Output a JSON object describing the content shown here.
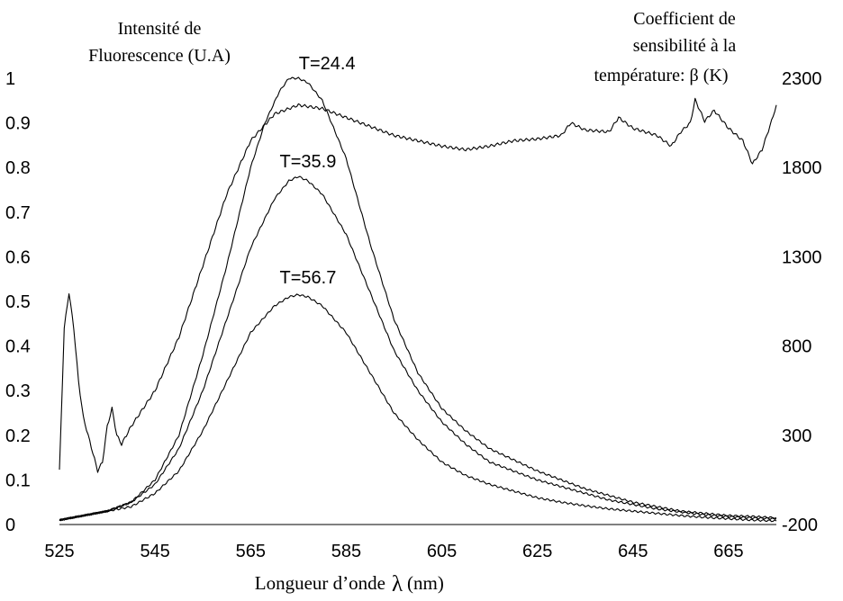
{
  "chart_data": {
    "type": "line",
    "xlabel_prefix": "Longueur d’onde",
    "xlabel_symbol": "λ",
    "xlabel_unit": "(nm)",
    "ylabel_left_lines": [
      "Intensité de",
      "Fluorescence (U.A)"
    ],
    "ylabel_right_lines": [
      "Coefficient de",
      "sensibilité à la",
      "température: β  (K)"
    ],
    "xlim": [
      525,
      675
    ],
    "ylim_left": [
      0,
      1
    ],
    "ylim_right": [
      -200,
      2300
    ],
    "x_ticks": [
      "525",
      "545",
      "565",
      "585",
      "605",
      "625",
      "645",
      "665"
    ],
    "y_left_ticks": [
      "0",
      "0.1",
      "0.2",
      "0.3",
      "0.4",
      "0.5",
      "0.6",
      "0.7",
      "0.8",
      "0.9",
      "1"
    ],
    "y_right_ticks": [
      "-200",
      "300",
      "800",
      "1300",
      "1800",
      "2300"
    ],
    "annotations": [
      {
        "text": "T=24.4",
        "x": 581,
        "y": 1.02
      },
      {
        "text": "T=35.9",
        "x": 577,
        "y": 0.8
      },
      {
        "text": "T=56.7",
        "x": 577,
        "y": 0.54
      }
    ],
    "series": [
      {
        "axis": "left",
        "x": [
          525,
          530,
          535,
          540,
          545,
          550,
          555,
          560,
          565,
          568,
          571,
          573,
          575,
          577,
          580,
          585,
          590,
          595,
          600,
          605,
          610,
          615,
          620,
          625,
          630,
          635,
          640,
          645,
          650,
          655,
          660,
          665,
          670,
          675
        ],
        "y": [
          0.01,
          0.02,
          0.03,
          0.05,
          0.1,
          0.2,
          0.38,
          0.58,
          0.8,
          0.9,
          0.97,
          1.0,
          1.0,
          0.99,
          0.95,
          0.82,
          0.63,
          0.46,
          0.34,
          0.26,
          0.21,
          0.17,
          0.145,
          0.12,
          0.1,
          0.08,
          0.065,
          0.05,
          0.04,
          0.03,
          0.025,
          0.02,
          0.018,
          0.015
        ]
      },
      {
        "axis": "left",
        "x": [
          525,
          530,
          535,
          540,
          545,
          550,
          555,
          560,
          565,
          570,
          573,
          575,
          577,
          580,
          585,
          590,
          595,
          600,
          605,
          610,
          615,
          620,
          625,
          630,
          635,
          640,
          645,
          650,
          655,
          660,
          665,
          670,
          675
        ],
        "y": [
          0.01,
          0.02,
          0.03,
          0.05,
          0.09,
          0.17,
          0.3,
          0.46,
          0.62,
          0.73,
          0.77,
          0.78,
          0.77,
          0.74,
          0.65,
          0.52,
          0.39,
          0.3,
          0.23,
          0.18,
          0.14,
          0.12,
          0.1,
          0.085,
          0.07,
          0.055,
          0.045,
          0.035,
          0.028,
          0.022,
          0.018,
          0.015,
          0.013
        ]
      },
      {
        "axis": "left",
        "x": [
          525,
          530,
          535,
          540,
          545,
          550,
          555,
          560,
          565,
          570,
          573,
          575,
          577,
          580,
          585,
          590,
          595,
          600,
          605,
          610,
          615,
          620,
          625,
          630,
          635,
          640,
          645,
          650,
          655,
          660,
          665,
          670,
          675
        ],
        "y": [
          0.01,
          0.02,
          0.03,
          0.04,
          0.07,
          0.12,
          0.21,
          0.32,
          0.43,
          0.49,
          0.51,
          0.515,
          0.51,
          0.49,
          0.43,
          0.34,
          0.25,
          0.19,
          0.14,
          0.11,
          0.09,
          0.075,
          0.06,
          0.05,
          0.042,
          0.035,
          0.03,
          0.025,
          0.02,
          0.016,
          0.013,
          0.01,
          0.008
        ]
      },
      {
        "axis": "right",
        "x": [
          525,
          526,
          527,
          528,
          529,
          530,
          531,
          532,
          533,
          534,
          535,
          536,
          537,
          538,
          539,
          540,
          545,
          550,
          555,
          560,
          565,
          570,
          575,
          580,
          585,
          590,
          595,
          600,
          605,
          610,
          615,
          620,
          625,
          630,
          632,
          635,
          640,
          642,
          645,
          650,
          653,
          655,
          657,
          658,
          660,
          662,
          665,
          668,
          670,
          672,
          674,
          675
        ],
        "y": [
          100,
          900,
          1100,
          900,
          600,
          400,
          300,
          200,
          100,
          150,
          350,
          450,
          300,
          250,
          300,
          350,
          550,
          850,
          1250,
          1650,
          1950,
          2100,
          2150,
          2130,
          2080,
          2030,
          1980,
          1950,
          1920,
          1900,
          1920,
          1950,
          1960,
          1980,
          2050,
          2010,
          2000,
          2080,
          2020,
          1980,
          1920,
          2000,
          2050,
          2180,
          2060,
          2120,
          2020,
          1950,
          1820,
          1900,
          2060,
          2150
        ]
      }
    ]
  }
}
